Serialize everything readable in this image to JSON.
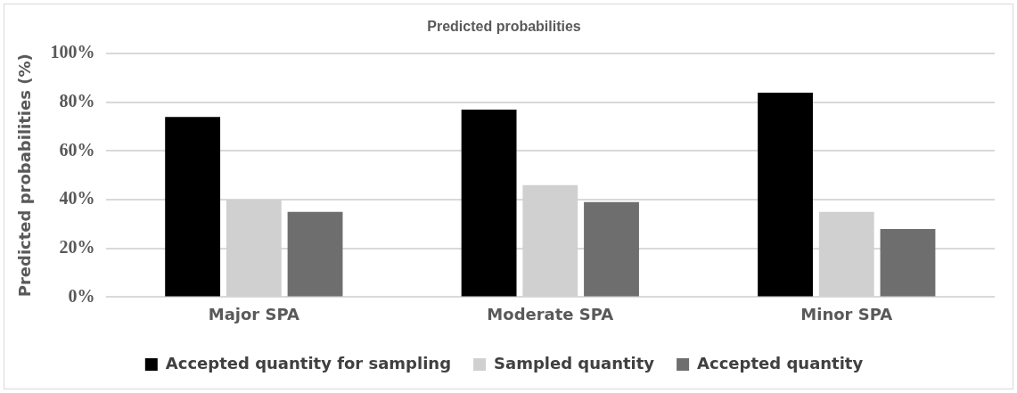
{
  "chart_data": {
    "type": "bar",
    "title": "Predicted probabilities",
    "ylabel": "Predicted probabilities (%)",
    "categories": [
      "Major SPA",
      "Moderate SPA",
      "Minor SPA"
    ],
    "series": [
      {
        "name": "Accepted quantity for sampling",
        "color": "#000000",
        "values": [
          74,
          77,
          84
        ]
      },
      {
        "name": "Sampled quantity",
        "color": "#d0d0d0",
        "values": [
          40,
          46,
          35
        ]
      },
      {
        "name": "Accepted quantity",
        "color": "#6e6e6e",
        "values": [
          35,
          39,
          28
        ]
      }
    ],
    "ylim": [
      0,
      100
    ],
    "yticks": [
      {
        "value": 0,
        "label": "0%"
      },
      {
        "value": 20,
        "label": "20%"
      },
      {
        "value": 40,
        "label": "40%"
      },
      {
        "value": 60,
        "label": "60%"
      },
      {
        "value": 80,
        "label": "80%"
      },
      {
        "value": 100,
        "label": "100%"
      }
    ],
    "grid": "y",
    "legend": "bottom"
  }
}
